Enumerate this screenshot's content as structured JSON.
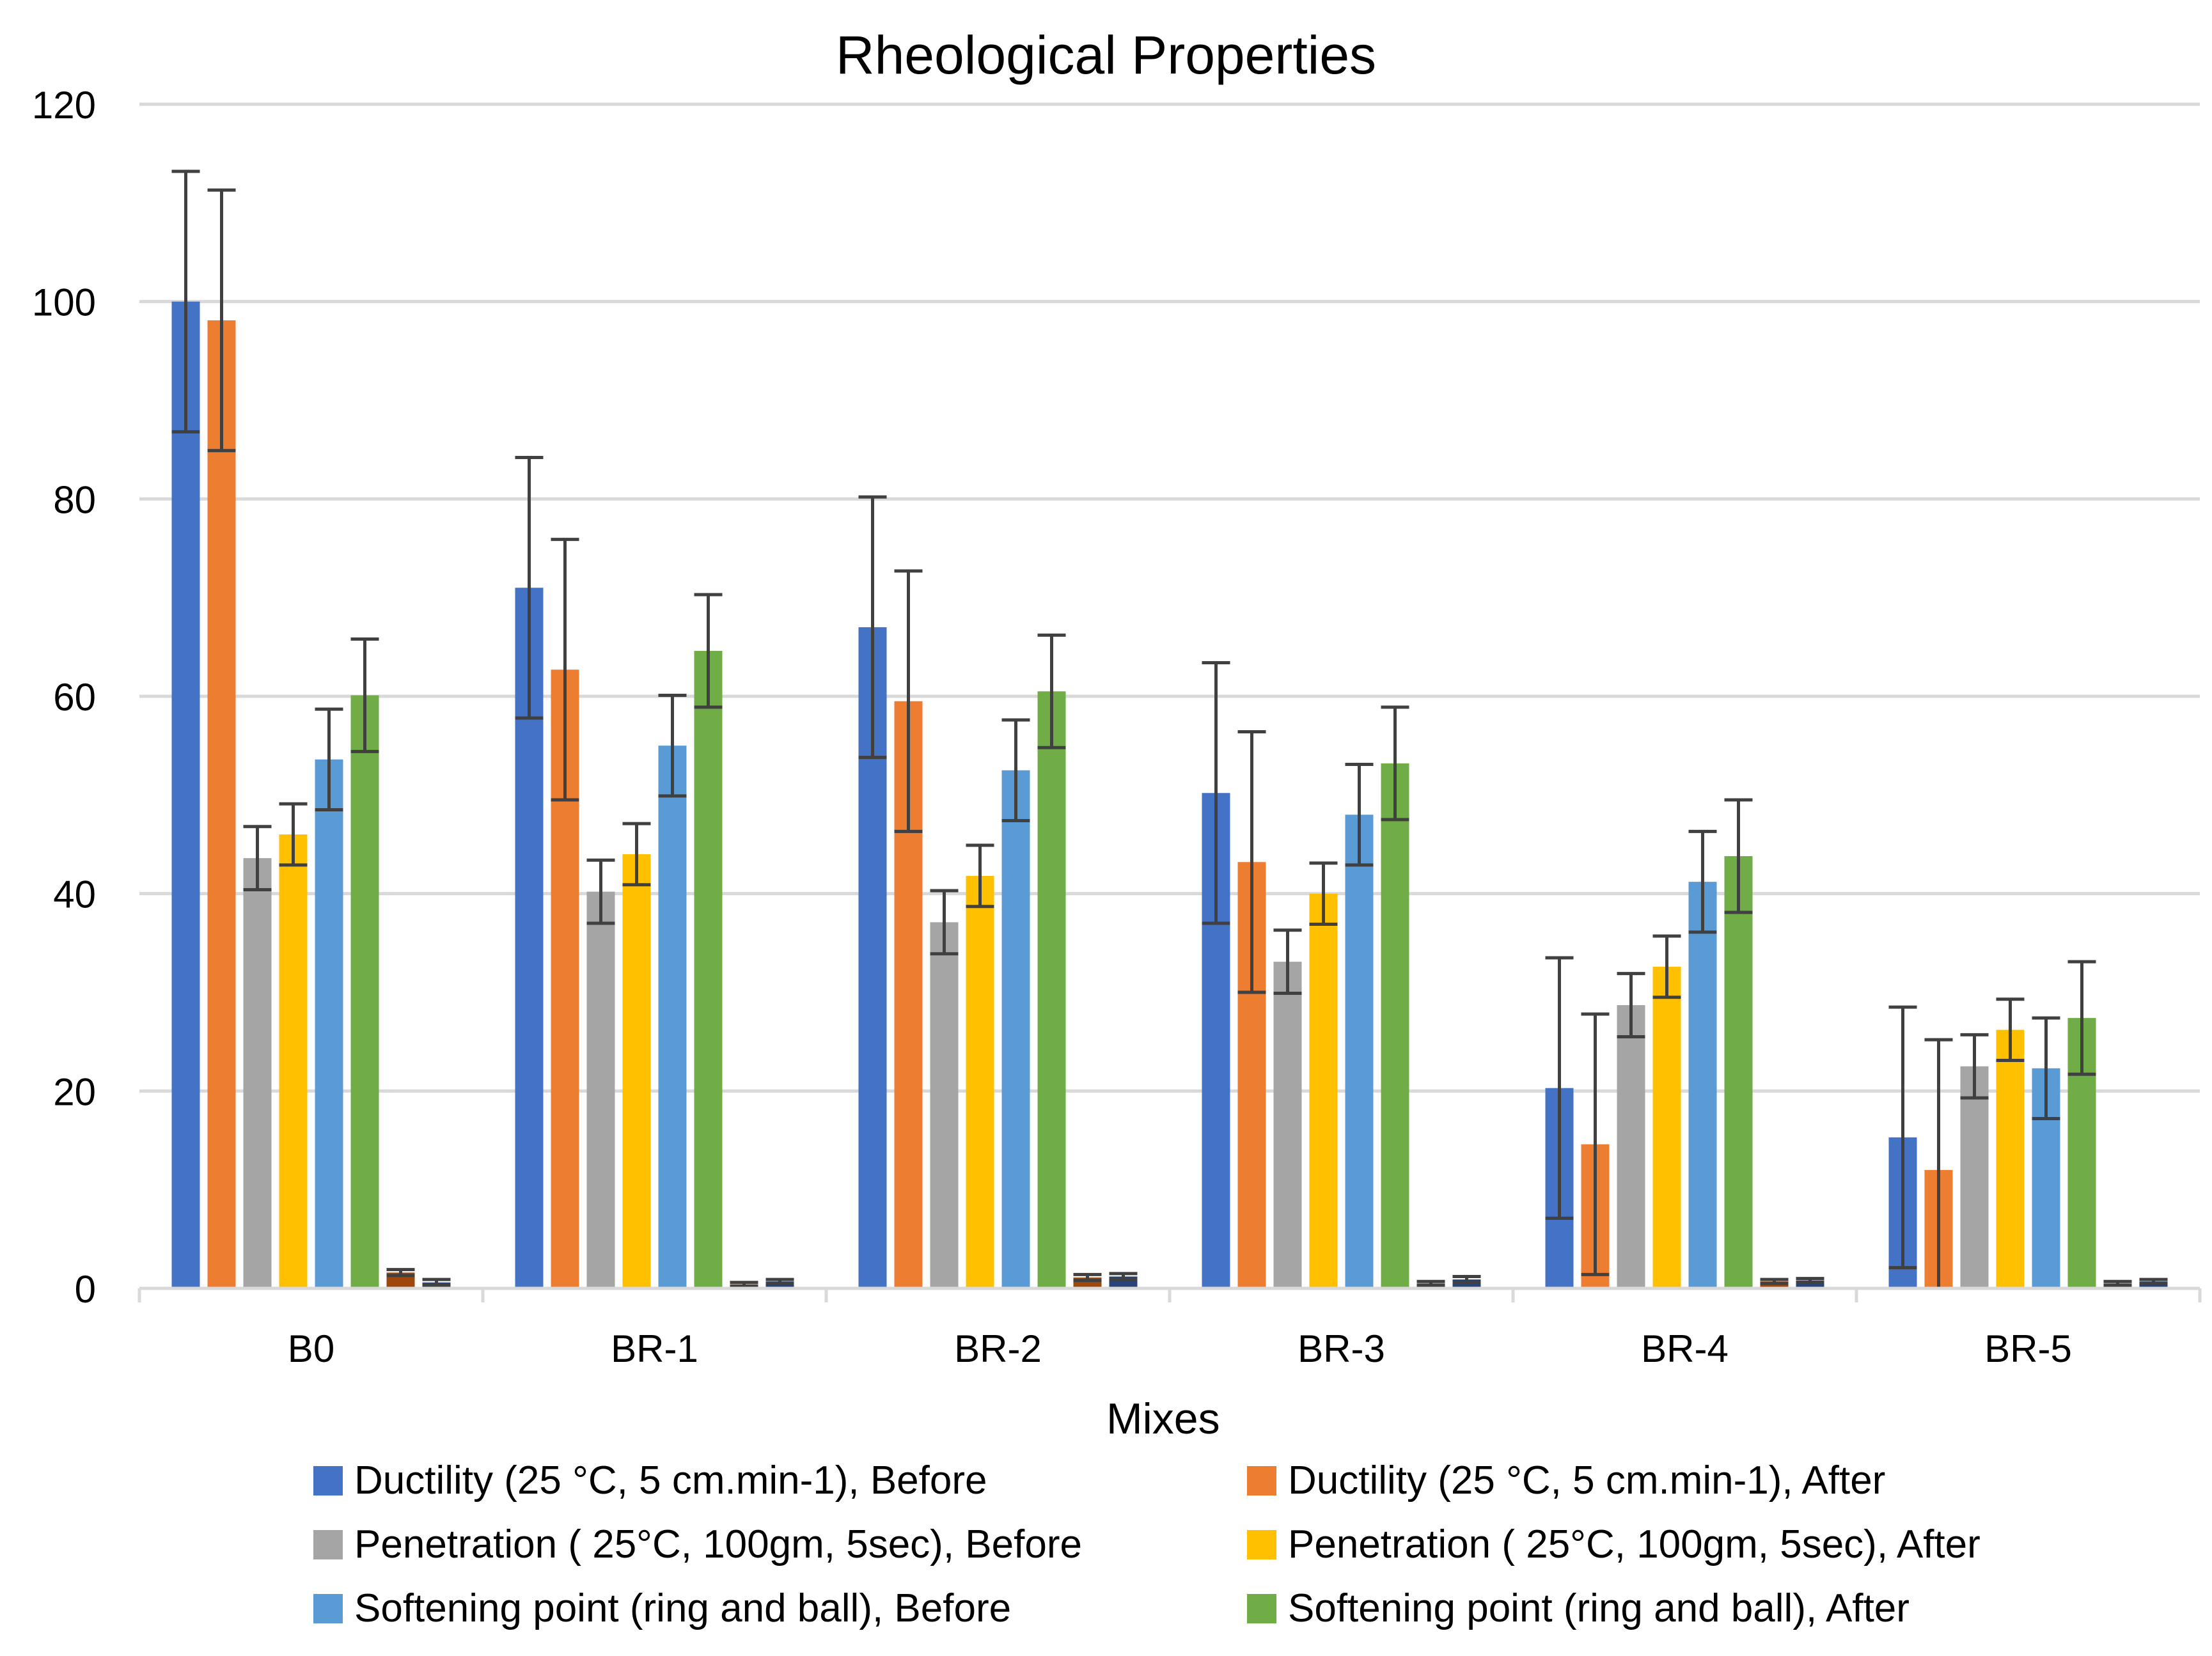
{
  "chart_data": {
    "type": "bar",
    "title": "Rheological Properties",
    "xlabel": "Mixes",
    "ylabel": "",
    "ylim": [
      0,
      120
    ],
    "yticks": [
      0,
      20,
      40,
      60,
      80,
      100,
      120
    ],
    "grid": true,
    "legend_position": "bottom",
    "categories": [
      "B0",
      "BR-1",
      "BR-2",
      "BR-3",
      "BR-4",
      "BR-5"
    ],
    "series": [
      {
        "name": "Ductility (25 °C, 5 cm.min-1), Before",
        "color": "#4472C4",
        "in_legend": true,
        "values": [
          100,
          71,
          67,
          50.2,
          20.3,
          15.3
        ],
        "errors": [
          13.2,
          13.2,
          13.2,
          13.2,
          13.2,
          13.2
        ]
      },
      {
        "name": "Ductility (25 °C, 5 cm.min-1), After",
        "color": "#ED7D31",
        "in_legend": true,
        "values": [
          98.1,
          62.7,
          59.5,
          43.2,
          14.6,
          12
        ],
        "errors": [
          13.2,
          13.2,
          13.2,
          13.2,
          13.2,
          13.2
        ]
      },
      {
        "name": "Penetration ( 25°C, 100gm, 5sec), Before",
        "color": "#A5A5A5",
        "in_legend": true,
        "values": [
          43.6,
          40.2,
          37.1,
          33.1,
          28.7,
          22.5
        ],
        "errors": [
          3.2,
          3.2,
          3.2,
          3.2,
          3.2,
          3.2
        ]
      },
      {
        "name": "Penetration ( 25°C, 100gm, 5sec), After",
        "color": "#FFC000",
        "in_legend": true,
        "values": [
          46,
          44,
          41.8,
          40,
          32.6,
          26.2
        ],
        "errors": [
          3.1,
          3.1,
          3.1,
          3.1,
          3.1,
          3.1
        ]
      },
      {
        "name": "Softening point (ring and ball), Before",
        "color": "#5B9BD5",
        "in_legend": true,
        "values": [
          53.6,
          55,
          52.5,
          48,
          41.2,
          22.3
        ],
        "errors": [
          5.1,
          5.1,
          5.1,
          5.1,
          5.1,
          5.1
        ]
      },
      {
        "name": "Softening point (ring and ball), After",
        "color": "#70AD47",
        "in_legend": true,
        "values": [
          60.1,
          64.6,
          60.5,
          53.2,
          43.8,
          27.4
        ],
        "errors": [
          5.7,
          5.7,
          5.7,
          5.7,
          5.7,
          5.7
        ]
      },
      {
        "name": "",
        "color": "#9E480E",
        "in_legend": false,
        "values": [
          1.6,
          0.4,
          1.1,
          0.5,
          0.7,
          0.5
        ],
        "errors": [
          0.3,
          0.2,
          0.3,
          0.2,
          0.2,
          0.2
        ]
      },
      {
        "name": "",
        "color": "#264478",
        "in_legend": false,
        "values": [
          0.6,
          0.7,
          1.2,
          0.9,
          0.8,
          0.7
        ],
        "errors": [
          0.3,
          0.2,
          0.3,
          0.3,
          0.2,
          0.2
        ]
      }
    ]
  }
}
